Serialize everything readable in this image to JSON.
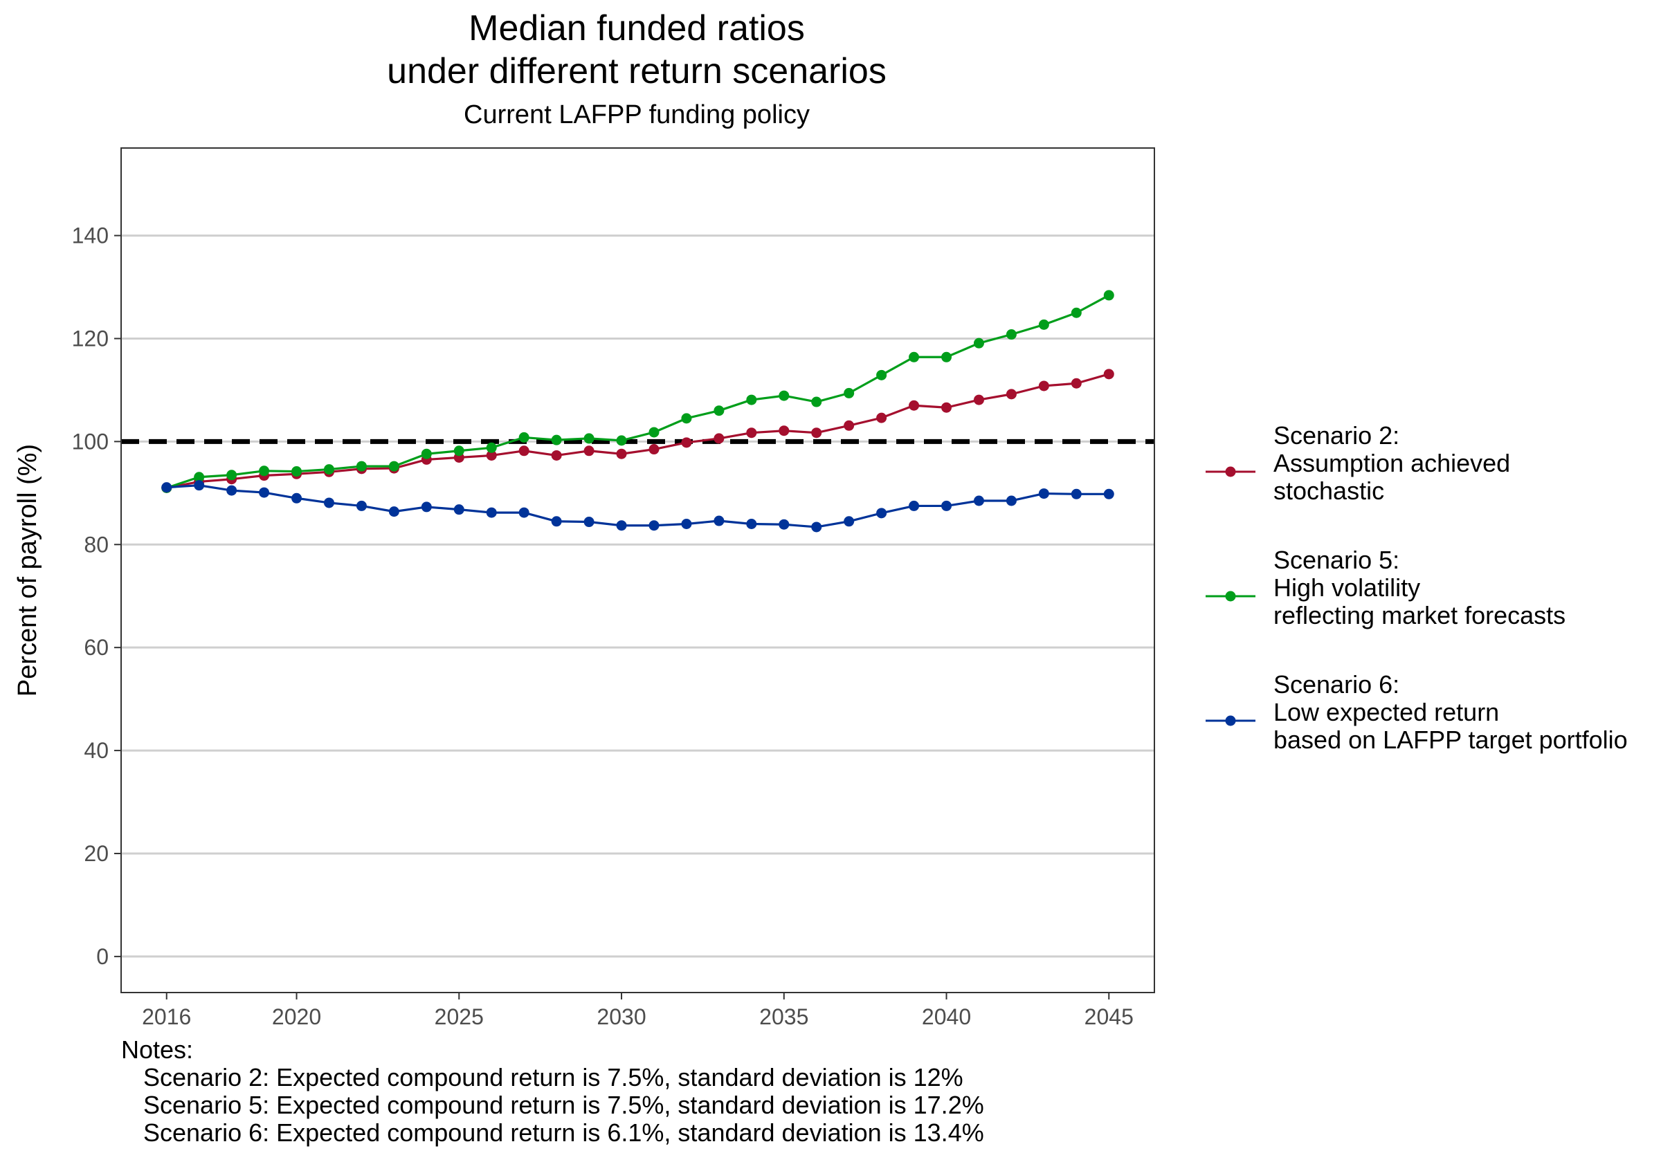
{
  "title": {
    "line1": "Median funded ratios",
    "line2": "under different return scenarios",
    "subtitle": "Current LAFPP funding policy"
  },
  "chart_data": {
    "type": "line",
    "title": "Median funded ratios under different return scenarios",
    "subtitle": "Current LAFPP funding policy",
    "xlabel": "",
    "ylabel": "Percent of payroll (%)",
    "xlim": [
      2014.6,
      2046.4
    ],
    "ylim": [
      -7,
      157
    ],
    "x_ticks": [
      2016,
      2020,
      2025,
      2030,
      2035,
      2040,
      2045
    ],
    "y_ticks": [
      0,
      20,
      40,
      60,
      80,
      100,
      120,
      140
    ],
    "grid": "horizontal major",
    "reference_line": {
      "y": 100,
      "style": "dashed",
      "color": "#000000"
    },
    "legend_position": "right",
    "x": [
      2016,
      2017,
      2018,
      2019,
      2020,
      2021,
      2022,
      2023,
      2024,
      2025,
      2026,
      2027,
      2028,
      2029,
      2030,
      2031,
      2032,
      2033,
      2034,
      2035,
      2036,
      2037,
      2038,
      2039,
      2040,
      2041,
      2042,
      2043,
      2044,
      2045
    ],
    "series": [
      {
        "name": "Scenario 2: Assumption achieved stochastic",
        "color": "#A50F2E",
        "values": [
          91.0,
          92.2,
          92.7,
          93.4,
          93.7,
          94.1,
          94.7,
          94.8,
          96.5,
          96.9,
          97.3,
          98.2,
          97.3,
          98.2,
          97.6,
          98.5,
          99.8,
          100.6,
          101.7,
          102.1,
          101.7,
          103.1,
          104.6,
          107.0,
          106.6,
          108.1,
          109.2,
          110.8,
          111.3,
          113.1
        ]
      },
      {
        "name": "Scenario 5: High volatility reflecting market forecasts",
        "color": "#009E1A",
        "values": [
          91.0,
          93.1,
          93.5,
          94.3,
          94.2,
          94.6,
          95.2,
          95.2,
          97.6,
          98.2,
          98.8,
          100.8,
          100.3,
          100.6,
          100.2,
          101.8,
          104.5,
          106.0,
          108.1,
          108.9,
          107.7,
          109.4,
          112.9,
          116.4,
          116.4,
          119.1,
          120.8,
          122.7,
          125.0,
          128.4
        ]
      },
      {
        "name": "Scenario 6: Low expected return based on LAFPP target portfolio",
        "color": "#003399",
        "values": [
          91.1,
          91.5,
          90.5,
          90.1,
          89.0,
          88.1,
          87.5,
          86.4,
          87.3,
          86.8,
          86.2,
          86.2,
          84.5,
          84.4,
          83.7,
          83.7,
          84.0,
          84.6,
          84.0,
          83.9,
          83.4,
          84.5,
          86.1,
          87.5,
          87.5,
          88.5,
          88.5,
          89.9,
          89.8,
          89.8
        ]
      }
    ]
  },
  "legend": {
    "items": [
      {
        "line1": "Scenario 2:",
        "line2": "Assumption achieved",
        "line3": "stochastic",
        "color": "#A50F2E"
      },
      {
        "line1": "Scenario 5:",
        "line2": "High volatility",
        "line3": "reflecting market forecasts",
        "color": "#009E1A"
      },
      {
        "line1": "Scenario 6:",
        "line2": "Low expected return",
        "line3": "based on LAFPP target portfolio",
        "color": "#003399"
      }
    ]
  },
  "notes": {
    "heading": "Notes:",
    "line1": "Scenario 2: Expected compound return is 7.5%, standard deviation is 12%",
    "line2": "Scenario 5: Expected compound return is 7.5%, standard deviation is 17.2%",
    "line3": "Scenario 6: Expected compound return is 6.1%, standard deviation is 13.4%"
  }
}
